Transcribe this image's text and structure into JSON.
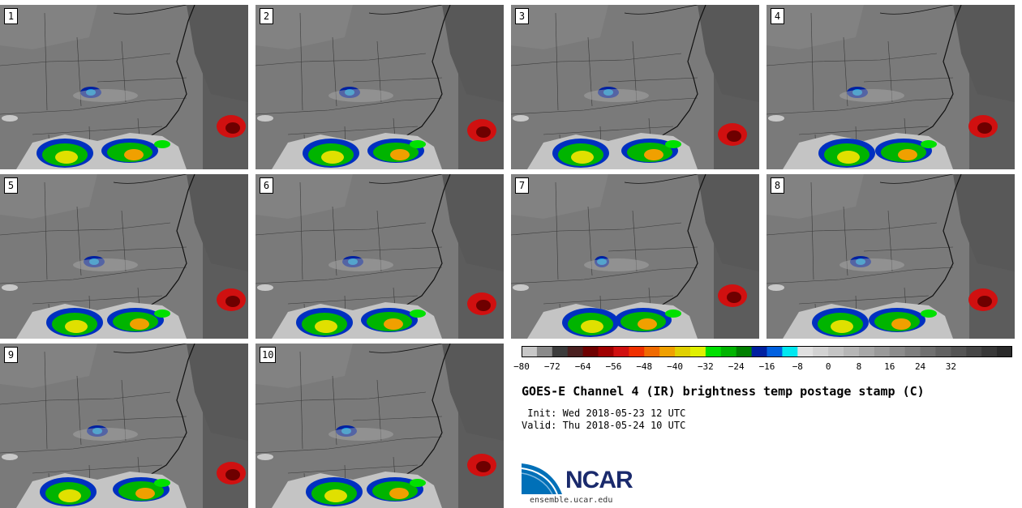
{
  "panels": [
    {
      "label": "1"
    },
    {
      "label": "2"
    },
    {
      "label": "3"
    },
    {
      "label": "4"
    },
    {
      "label": "5"
    },
    {
      "label": "6"
    },
    {
      "label": "7"
    },
    {
      "label": "8"
    },
    {
      "label": "9"
    },
    {
      "label": "10"
    }
  ],
  "colorbar": {
    "tick_labels": [
      "−80",
      "−72",
      "−64",
      "−56",
      "−48",
      "−40",
      "−32",
      "−24",
      "−16",
      "−8",
      "0",
      "8",
      "16",
      "24",
      "32"
    ],
    "colors": [
      "#c8c8c8",
      "#8a8a8a",
      "#3c3c3c",
      "#4a2020",
      "#6e0000",
      "#a00000",
      "#d01010",
      "#f03000",
      "#f06a00",
      "#f0a000",
      "#e0d000",
      "#e0f000",
      "#00e000",
      "#00b400",
      "#008000",
      "#0020a0",
      "#0060e0",
      "#00e8f0",
      "#e0e0e0",
      "#d2d2d2",
      "#c4c4c4",
      "#b6b6b6",
      "#a8a8a8",
      "#9a9a9a",
      "#8c8c8c",
      "#7e7e7e",
      "#707070",
      "#626262",
      "#545454",
      "#464646",
      "#383838",
      "#2a2a2a"
    ]
  },
  "title": "GOES-E Channel 4 (IR) brightness temp postage stamp (C)",
  "init": " Init: Wed 2018-05-23 12 UTC",
  "valid": "Valid: Thu 2018-05-24 10 UTC",
  "logo": {
    "text": "NCAR",
    "url": "ensemble.ucar.edu"
  }
}
